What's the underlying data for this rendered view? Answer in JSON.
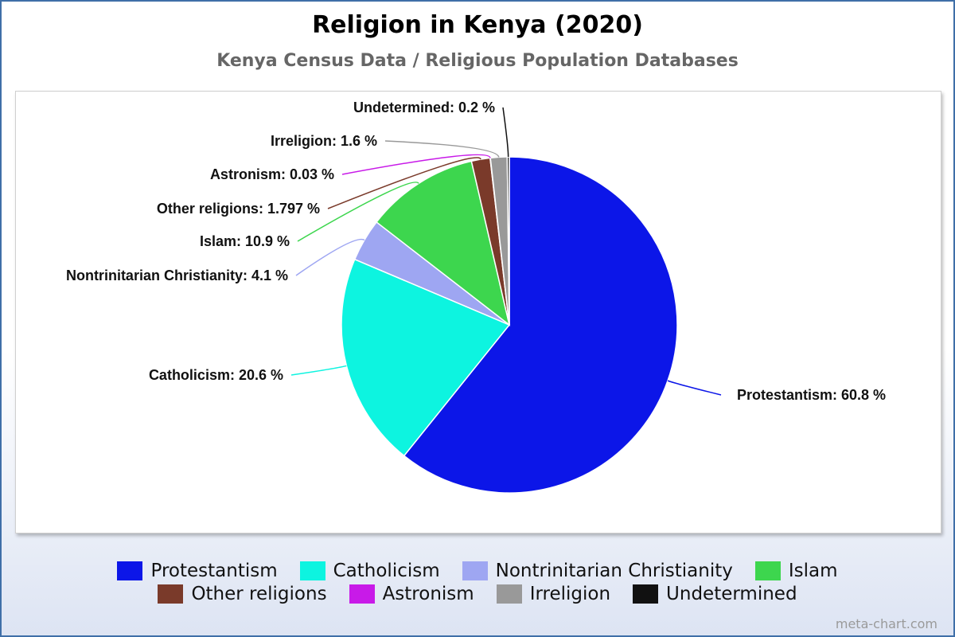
{
  "title": "Religion in Kenya (2020)",
  "subtitle": "Kenya Census Data / Religious Population Databases",
  "footer": "meta-chart.com",
  "chart_data": {
    "type": "pie",
    "title": "Religion in Kenya (2020)",
    "subtitle": "Kenya Census Data / Religious Population Databases",
    "legend_position": "bottom",
    "slices": [
      {
        "label": "Protestantism",
        "value": 60.8,
        "display": "Protestantism: 60.8 %",
        "color": "#0c16e8"
      },
      {
        "label": "Catholicism",
        "value": 20.6,
        "display": "Catholicism: 20.6 %",
        "color": "#0df4e0"
      },
      {
        "label": "Nontrinitarian Christianity",
        "value": 4.1,
        "display": "Nontrinitarian Christianity: 4.1 %",
        "color": "#9ea6f2"
      },
      {
        "label": "Islam",
        "value": 10.9,
        "display": "Islam: 10.9 %",
        "color": "#3dd64e"
      },
      {
        "label": "Other religions",
        "value": 1.797,
        "display": "Other religions: 1.797 %",
        "color": "#7a3a2a"
      },
      {
        "label": "Astronism",
        "value": 0.03,
        "display": "Astronism: 0.03 %",
        "color": "#c81ae8"
      },
      {
        "label": "Irreligion",
        "value": 1.6,
        "display": "Irreligion: 1.6 %",
        "color": "#999999"
      },
      {
        "label": "Undetermined",
        "value": 0.2,
        "display": "Undetermined: 0.2 %",
        "color": "#111111"
      }
    ]
  }
}
